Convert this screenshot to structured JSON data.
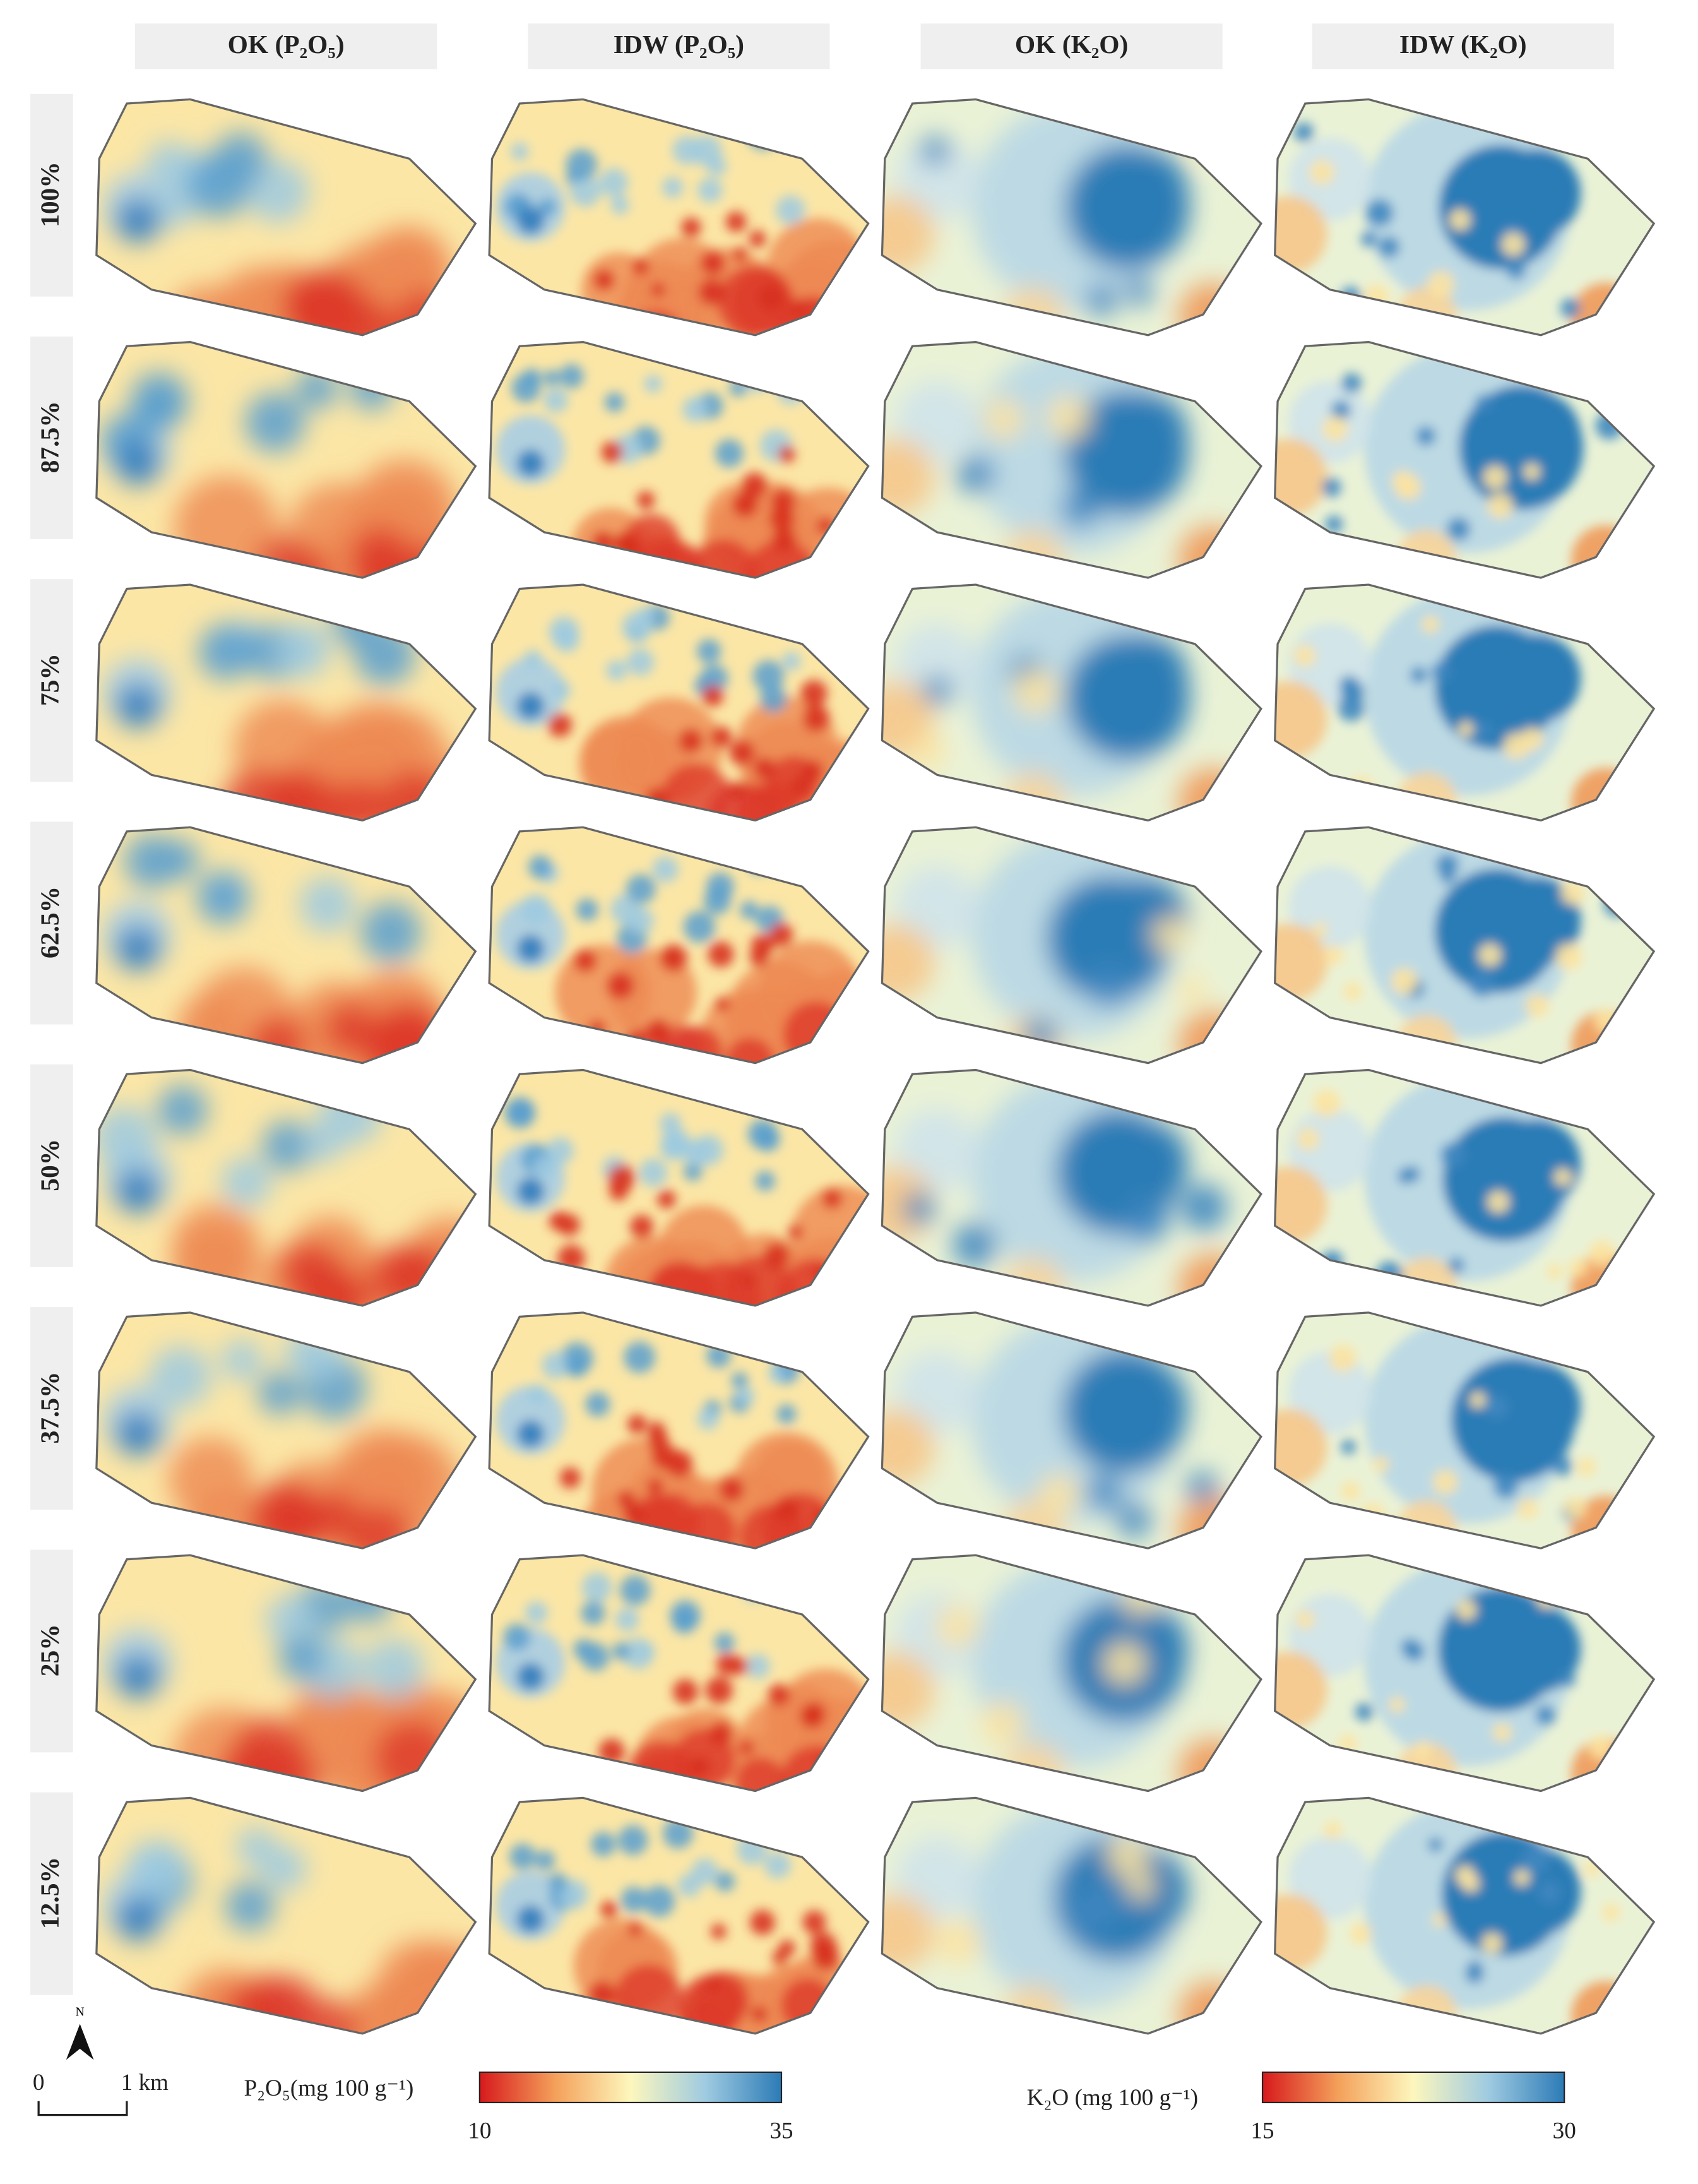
{
  "columns": [
    "OK (P₂O₅)",
    "IDW (P₂O₅)",
    "OK (K₂O)",
    "IDW (K₂O)"
  ],
  "rows": [
    "100%",
    "87.5%",
    "75%",
    "62.5%",
    "50%",
    "37.5%",
    "25%",
    "12.5%"
  ],
  "north": "N",
  "scale_bar": {
    "start": "0",
    "end": "1 km"
  },
  "legends": [
    {
      "title": "P₂O₅(mg 100 g⁻¹)",
      "min": 10,
      "max": 35
    },
    {
      "title": "K₂O (mg 100 g⁻¹)",
      "min": 15,
      "max": 30
    }
  ]
}
